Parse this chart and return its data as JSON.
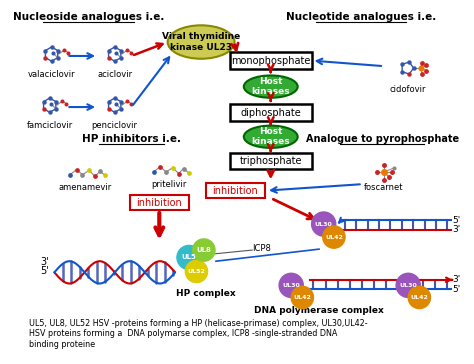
{
  "bg_color": "#ffffff",
  "heading_nucleoside": "Nucleoside analogues i.e.",
  "heading_nucleotide": "Nucleotide analogues i.e.",
  "heading_hp": "HP inhibitors i.e.",
  "heading_pyrophosphate": "Analogue to pyrophosphate",
  "label_valaciclovir": "valaciclovir",
  "label_aciclovir": "aciclovir",
  "label_famciclovir": "famciclovir",
  "label_penciclovir": "penciclovir",
  "label_cidofovir": "cidofovir",
  "label_amenamevir": "amenamevir",
  "label_pritelivir": "pritelivir",
  "label_foscarnet": "foscarnet",
  "label_monophosphate": "monophosphate",
  "label_diphosphate": "diphosphate",
  "label_triphosphate": "triphosphate",
  "label_inhibition": "inhibition",
  "label_viral_kinase": "Viral thymidine\nkinase UL23",
  "label_host_kinases": "Host\nkinases",
  "label_icp8": "ICP8",
  "label_hp_complex": "HP complex",
  "label_dna_pol": "DNA polymerase complex",
  "caption": "UL5, UL8, UL52 HSV -proteins forming a HP (helicase-primase) complex, UL30,UL42-\nHSV proteins forming a  DNA polymarse complex, ICP8 -single-stranded DNA\nbinding proteine",
  "color_red": "#cc0000",
  "color_blue": "#1155cc",
  "color_green": "#33aa33",
  "color_green_dark": "#006600",
  "color_viral": "#cccc55",
  "color_viral_ec": "#888800",
  "color_ul5": "#33bbcc",
  "color_ul8": "#88cc33",
  "color_ul52": "#ddcc00",
  "color_ul30": "#9955bb",
  "color_ul42": "#dd8800",
  "mol_blue": "#3355aa",
  "mol_red": "#cc2222",
  "mol_gray": "#888888",
  "mol_yellow": "#cccc00"
}
